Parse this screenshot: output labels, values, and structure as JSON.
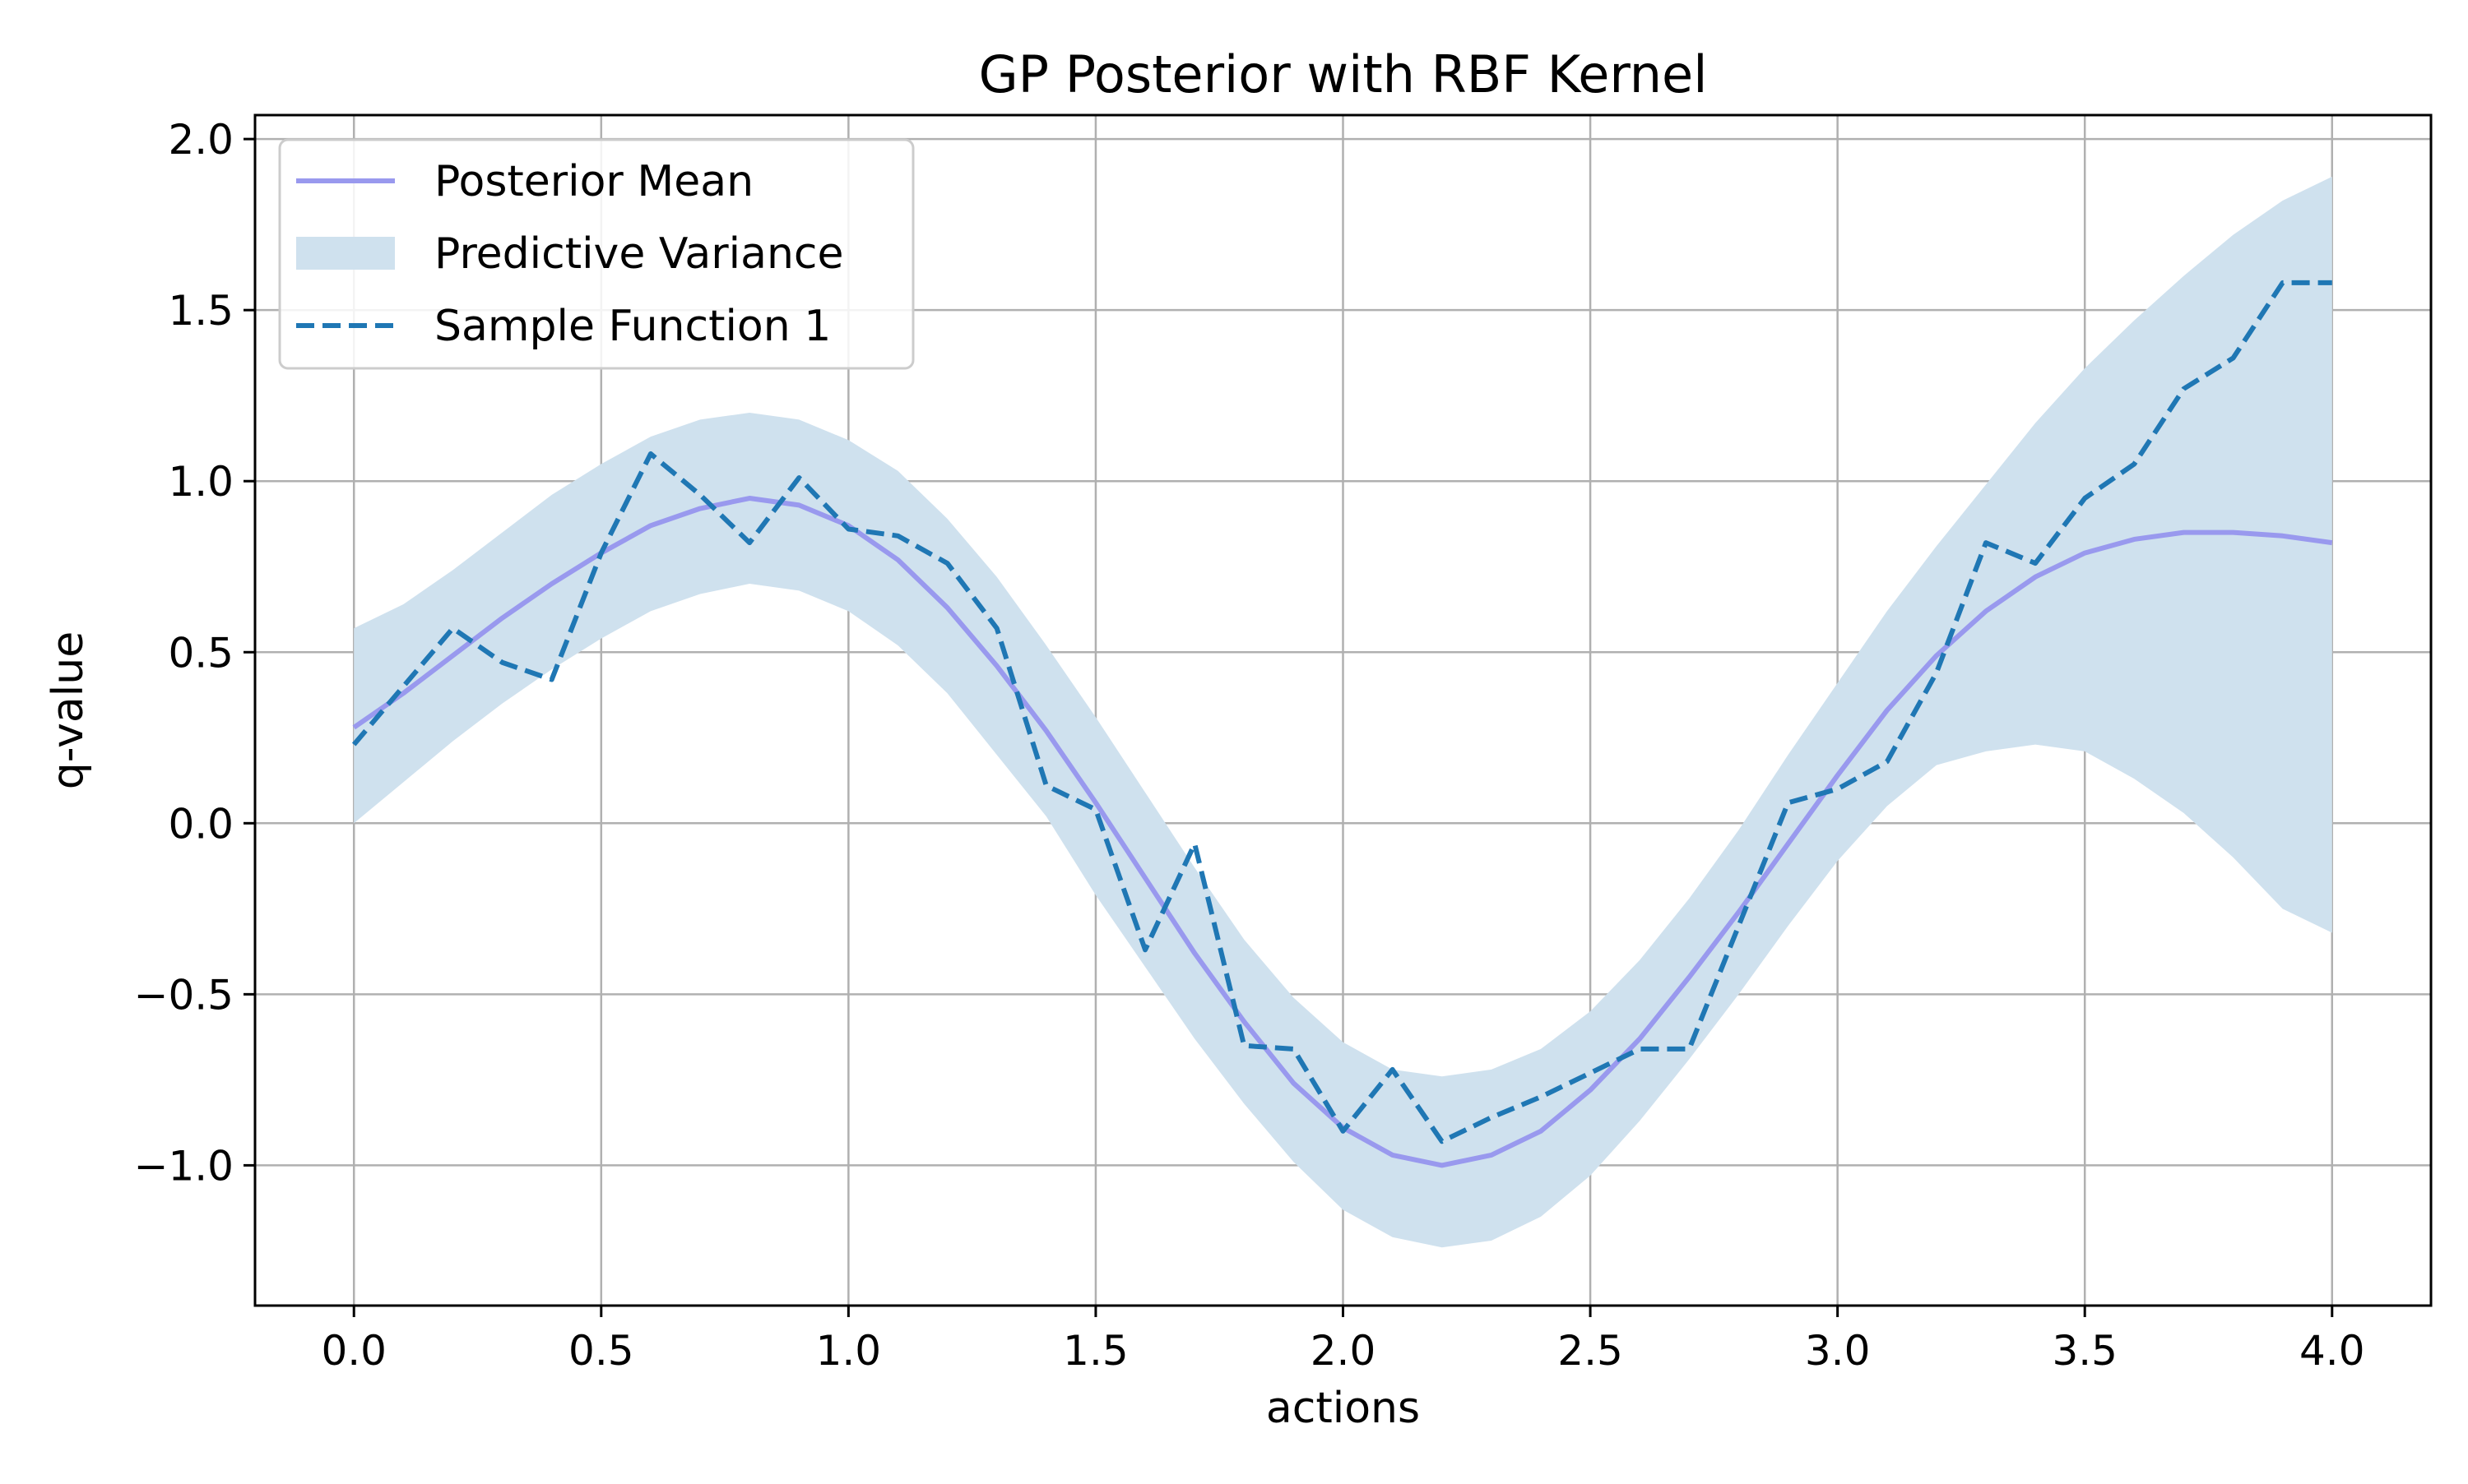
{
  "chart_data": {
    "type": "line",
    "title": "GP Posterior with RBF Kernel",
    "xlabel": "actions",
    "ylabel": "q-value",
    "xlim": [
      -0.2,
      4.2
    ],
    "ylim": [
      -1.41,
      2.07
    ],
    "xticks": [
      0.0,
      0.5,
      1.0,
      1.5,
      2.0,
      2.5,
      3.0,
      3.5,
      4.0
    ],
    "xtick_labels": [
      "0.0",
      "0.5",
      "1.0",
      "1.5",
      "2.0",
      "2.5",
      "3.0",
      "3.5",
      "4.0"
    ],
    "yticks": [
      -1.0,
      -0.5,
      0.0,
      0.5,
      1.0,
      1.5,
      2.0
    ],
    "ytick_labels": [
      "−1.0",
      "−0.5",
      "0.0",
      "0.5",
      "1.0",
      "1.5",
      "2.0"
    ],
    "grid": true,
    "legend_position": "top-left",
    "x": [
      0.0,
      0.1,
      0.2,
      0.3,
      0.4,
      0.5,
      0.6,
      0.7,
      0.8,
      0.9,
      1.0,
      1.1,
      1.2,
      1.3,
      1.4,
      1.5,
      1.6,
      1.7,
      1.8,
      1.9,
      2.0,
      2.1,
      2.2,
      2.3,
      2.4,
      2.5,
      2.6,
      2.7,
      2.8,
      2.9,
      3.0,
      3.1,
      3.2,
      3.3,
      3.4,
      3.5,
      3.6,
      3.7,
      3.8,
      3.9,
      4.0
    ],
    "series": [
      {
        "name": "Posterior Mean",
        "style": "solid",
        "color": "#9999ee",
        "values": [
          0.28,
          0.38,
          0.49,
          0.6,
          0.7,
          0.79,
          0.87,
          0.92,
          0.95,
          0.93,
          0.87,
          0.77,
          0.63,
          0.46,
          0.27,
          0.06,
          -0.16,
          -0.38,
          -0.58,
          -0.76,
          -0.89,
          -0.97,
          -1.0,
          -0.97,
          -0.9,
          -0.78,
          -0.63,
          -0.45,
          -0.26,
          -0.06,
          0.14,
          0.33,
          0.49,
          0.62,
          0.72,
          0.79,
          0.83,
          0.85,
          0.85,
          0.84,
          0.82
        ]
      },
      {
        "name": "Predictive Variance",
        "style": "band",
        "color": "#cfe1ee",
        "upper": [
          0.57,
          0.64,
          0.74,
          0.85,
          0.96,
          1.05,
          1.13,
          1.18,
          1.2,
          1.18,
          1.12,
          1.03,
          0.89,
          0.72,
          0.52,
          0.31,
          0.09,
          -0.13,
          -0.34,
          -0.51,
          -0.64,
          -0.72,
          -0.74,
          -0.72,
          -0.66,
          -0.55,
          -0.4,
          -0.22,
          -0.02,
          0.2,
          0.41,
          0.62,
          0.81,
          0.99,
          1.17,
          1.33,
          1.47,
          1.6,
          1.72,
          1.82,
          1.89
        ],
        "lower": [
          0.0,
          0.12,
          0.24,
          0.35,
          0.45,
          0.54,
          0.62,
          0.67,
          0.7,
          0.68,
          0.62,
          0.52,
          0.38,
          0.2,
          0.02,
          -0.21,
          -0.42,
          -0.63,
          -0.82,
          -0.99,
          -1.13,
          -1.21,
          -1.24,
          -1.22,
          -1.15,
          -1.03,
          -0.87,
          -0.69,
          -0.5,
          -0.3,
          -0.11,
          0.05,
          0.17,
          0.21,
          0.23,
          0.21,
          0.13,
          0.03,
          -0.1,
          -0.25,
          -0.32
        ]
      },
      {
        "name": "Sample Function 1",
        "style": "dashed",
        "color": "#1f77b4",
        "values": [
          0.23,
          0.4,
          0.57,
          0.47,
          0.42,
          0.79,
          1.08,
          0.96,
          0.82,
          1.01,
          0.86,
          0.84,
          0.76,
          0.57,
          0.11,
          0.04,
          -0.37,
          -0.06,
          -0.65,
          -0.66,
          -0.9,
          -0.72,
          -0.93,
          -0.86,
          -0.8,
          -0.73,
          -0.66,
          -0.66,
          -0.3,
          0.06,
          0.1,
          0.18,
          0.44,
          0.82,
          0.76,
          0.95,
          1.05,
          1.27,
          1.36,
          1.58,
          1.58
        ]
      }
    ]
  }
}
